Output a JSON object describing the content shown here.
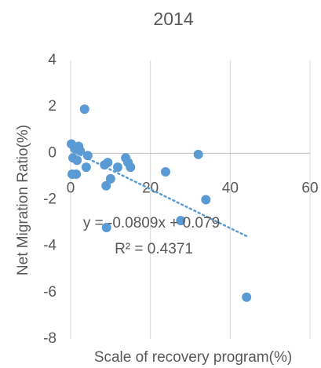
{
  "chart_data": {
    "type": "scatter",
    "title": "2014",
    "x_label": "Scale of recovery program(%)",
    "y_label": "Net Migration Ratio(%)",
    "annotations": [
      "y = -0.0809x + 0.079",
      "R² = 0.4371"
    ],
    "trendline": "linear",
    "color": "#5b9bd5",
    "x": [
      3.5,
      0.2,
      1,
      2,
      2.4,
      0.6,
      1.6,
      0.4,
      1.4,
      4.3,
      3.9,
      9.3,
      8.5,
      11.8,
      13.8,
      14.4,
      15,
      10,
      8.9,
      23.8,
      32,
      33.9,
      27.6,
      9,
      44.1
    ],
    "values": [
      1.9,
      0.4,
      0.2,
      0.3,
      0.1,
      -0.2,
      -0.3,
      -0.9,
      -0.9,
      -0.1,
      -0.6,
      -0.4,
      -0.5,
      -0.6,
      -0.2,
      -0.4,
      -0.6,
      -1.1,
      -1.4,
      -0.8,
      -0.05,
      -2,
      -2.9,
      -3.2,
      -6.2
    ],
    "xlim": [
      0,
      60
    ],
    "xticks": [
      0,
      20,
      40,
      60
    ],
    "ylim": [
      -8,
      4
    ],
    "yticks": [
      -8,
      -6,
      -4,
      -2,
      0,
      2,
      4
    ],
    "grid": "x"
  }
}
